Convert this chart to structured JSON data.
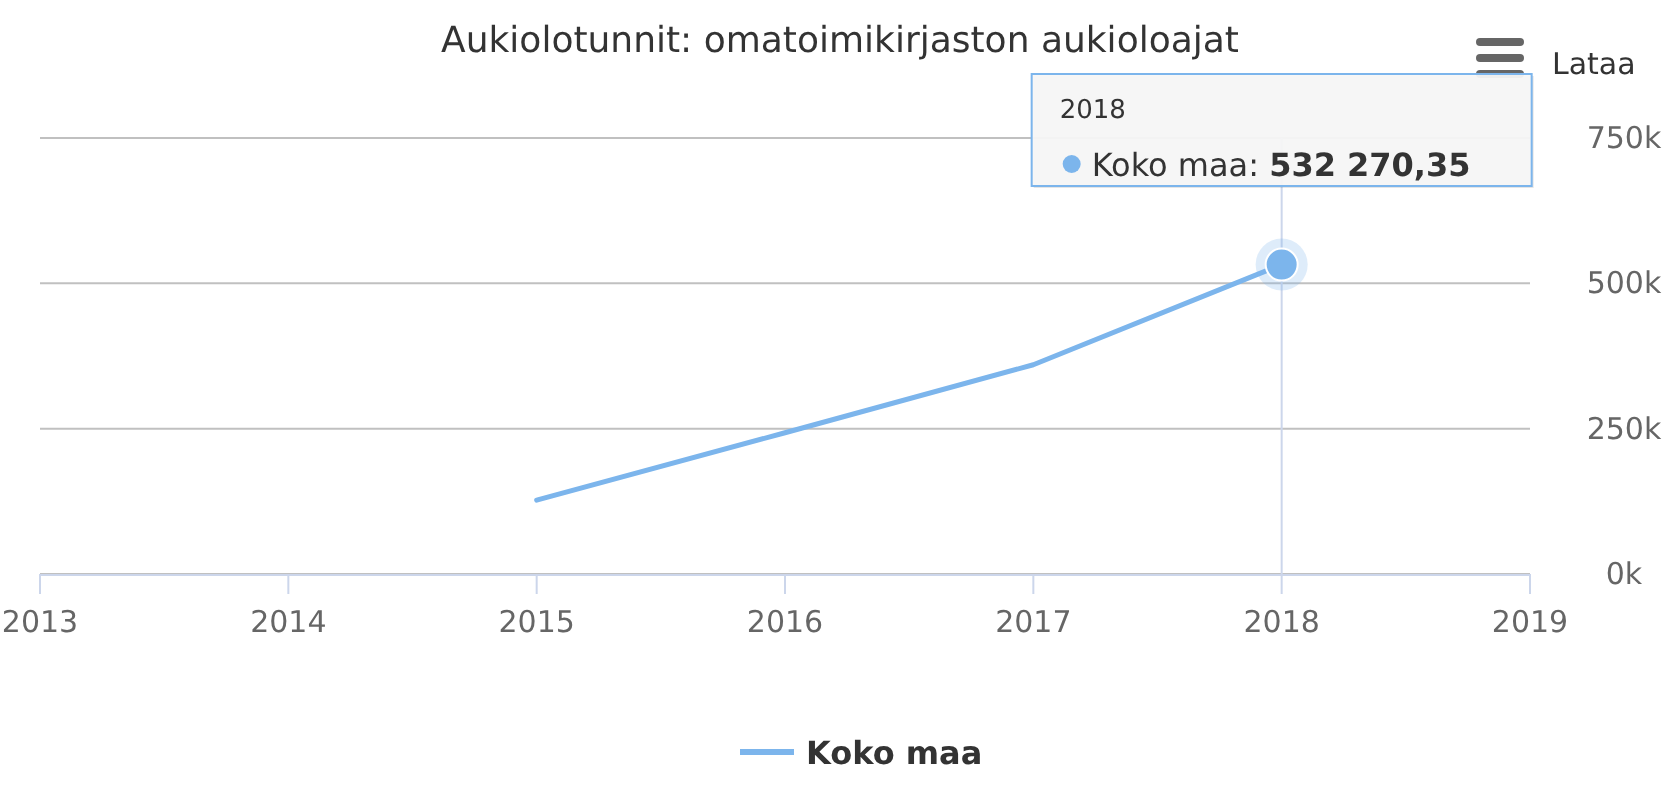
{
  "chart_data": {
    "type": "line",
    "title": "Aukiolotunnit: omatoimikirjaston aukioloajat",
    "x": [
      2015,
      2016,
      2017,
      2018
    ],
    "series": [
      {
        "name": "Koko maa",
        "color": "#7cb5ec",
        "values": [
          127000,
          243000,
          360000,
          532270.35
        ]
      }
    ],
    "xlim": [
      2013,
      2019
    ],
    "xticks": [
      2013,
      2014,
      2015,
      2016,
      2017,
      2018,
      2019
    ],
    "ylim": [
      0,
      750000
    ],
    "yticks": [
      {
        "value": 0,
        "label": "0k"
      },
      {
        "value": 250000,
        "label": "250k"
      },
      {
        "value": 500000,
        "label": "500k"
      },
      {
        "value": 750000,
        "label": "750k"
      }
    ],
    "grid": "y",
    "legend": "bottom",
    "marker": "none",
    "line_style": "solid",
    "ref_lines": [
      {
        "axis": "x",
        "value": 2018,
        "label": null,
        "color": "#ccd6eb"
      }
    ],
    "annotations": [
      "Lataa",
      "2018",
      "Koko maa: 532 270,35"
    ]
  }
}
